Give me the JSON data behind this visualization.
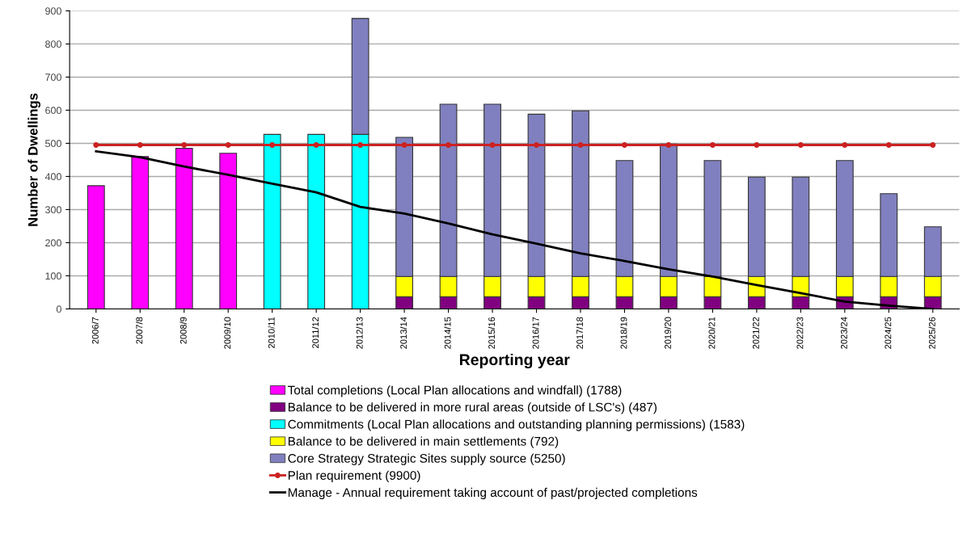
{
  "chart_data": {
    "type": "bar",
    "stacked": true,
    "xlabel": "Reporting year",
    "ylabel": "Number of Dwellings",
    "categories": [
      "2006/7",
      "2007/8",
      "2008/9",
      "2009/10",
      "2010/11",
      "2011/12",
      "2012/13",
      "2013/14",
      "2014/15",
      "2015/16",
      "2016/17",
      "2017/18",
      "2018/19",
      "2019/20",
      "2020/21",
      "2021/22",
      "2022/23",
      "2023/24",
      "2024/25",
      "2025/26"
    ],
    "series": [
      {
        "name": "Total completions (Local Plan allocations and windfall) (1788)",
        "color": "#ff00ff",
        "values": [
          372,
          460,
          485,
          470,
          null,
          null,
          null,
          null,
          null,
          null,
          null,
          null,
          null,
          null,
          null,
          null,
          null,
          null,
          null,
          null
        ]
      },
      {
        "name": "Balance to be delivered in more rural areas (outside of LSC's) (487)",
        "color": "#800080",
        "values": [
          null,
          null,
          null,
          null,
          null,
          null,
          null,
          37,
          37,
          37,
          37,
          37,
          37,
          37,
          37,
          37,
          37,
          37,
          37,
          37
        ]
      },
      {
        "name": "Commitments (Local Plan allocations and outstanding planning permissions) (1583)",
        "color": "#00ffff",
        "values": [
          null,
          null,
          null,
          null,
          527,
          527,
          527,
          null,
          null,
          null,
          null,
          null,
          null,
          null,
          null,
          null,
          null,
          null,
          null,
          null
        ]
      },
      {
        "name": "Balance to be delivered in main settlements (792)",
        "color": "#ffff00",
        "values": [
          null,
          null,
          null,
          null,
          null,
          null,
          null,
          61,
          61,
          61,
          61,
          61,
          61,
          61,
          61,
          61,
          61,
          61,
          61,
          61
        ]
      },
      {
        "name": "Core Strategy Strategic Sites supply source (5250)",
        "color": "#8080c0",
        "values": [
          null,
          null,
          null,
          null,
          null,
          null,
          350,
          420,
          520,
          520,
          490,
          500,
          350,
          400,
          350,
          300,
          300,
          350,
          250,
          150
        ]
      },
      {
        "name": "Plan requirement (9900)",
        "type": "line",
        "color": "#cc2222",
        "marker": "circle",
        "values": [
          495,
          495,
          495,
          495,
          495,
          495,
          495,
          495,
          495,
          495,
          495,
          495,
          495,
          495,
          495,
          495,
          495,
          495,
          495,
          495
        ]
      },
      {
        "name": "Manage - Annual requirement taking account of past/projected completions",
        "type": "line",
        "color": "#000000",
        "marker": "none",
        "values": [
          476,
          458,
          430,
          405,
          378,
          352,
          308,
          288,
          258,
          225,
          197,
          168,
          145,
          120,
          98,
          72,
          48,
          22,
          10,
          0
        ]
      }
    ],
    "ylim": [
      0,
      900
    ],
    "yticks": [
      0,
      100,
      200,
      300,
      400,
      500,
      600,
      700,
      800,
      900
    ],
    "grid": "y",
    "legend": "bottom"
  }
}
